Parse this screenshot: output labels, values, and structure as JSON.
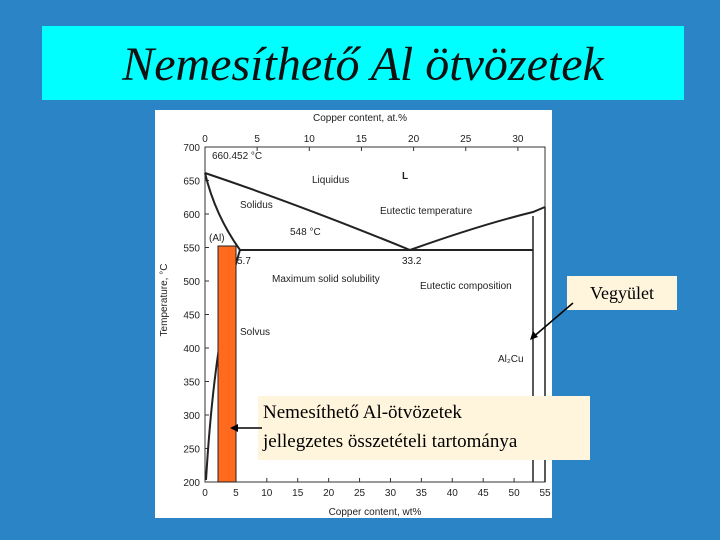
{
  "title": "Nemesíthető Al ötvözetek",
  "diagram": {
    "x_top_label": "Copper content, at.%",
    "x_top_ticks": [
      0,
      5,
      10,
      15,
      20,
      25,
      30
    ],
    "x_bottom_label": "Copper content, wt%",
    "x_bottom_ticks": [
      0,
      5,
      10,
      15,
      20,
      25,
      30,
      35,
      40,
      45,
      50,
      55
    ],
    "y_label": "Temperature, °C",
    "y_ticks": [
      200,
      250,
      300,
      350,
      400,
      450,
      500,
      550,
      600,
      650,
      700
    ],
    "annotations": {
      "melting": "660.452 °C",
      "liquidus": "Liquidus",
      "liquid": "L",
      "solidus": "Solidus",
      "eutectic_temp": "Eutectic temperature",
      "eutectic_value": "548 °C",
      "al_phase": "(Al)",
      "max_solubility_value": "5.7",
      "eutectic_comp_value": "33.2",
      "max_solubility": "Maximum solid solubility",
      "eutectic_comp": "Eutectic composition",
      "solvus": "Solvus",
      "compound": "Al₂Cu"
    }
  },
  "callouts": {
    "compound": "Vegyület",
    "range": [
      "Nemesíthető Al-ötvözetek",
      "jellegzetes összetételi tartománya"
    ]
  }
}
